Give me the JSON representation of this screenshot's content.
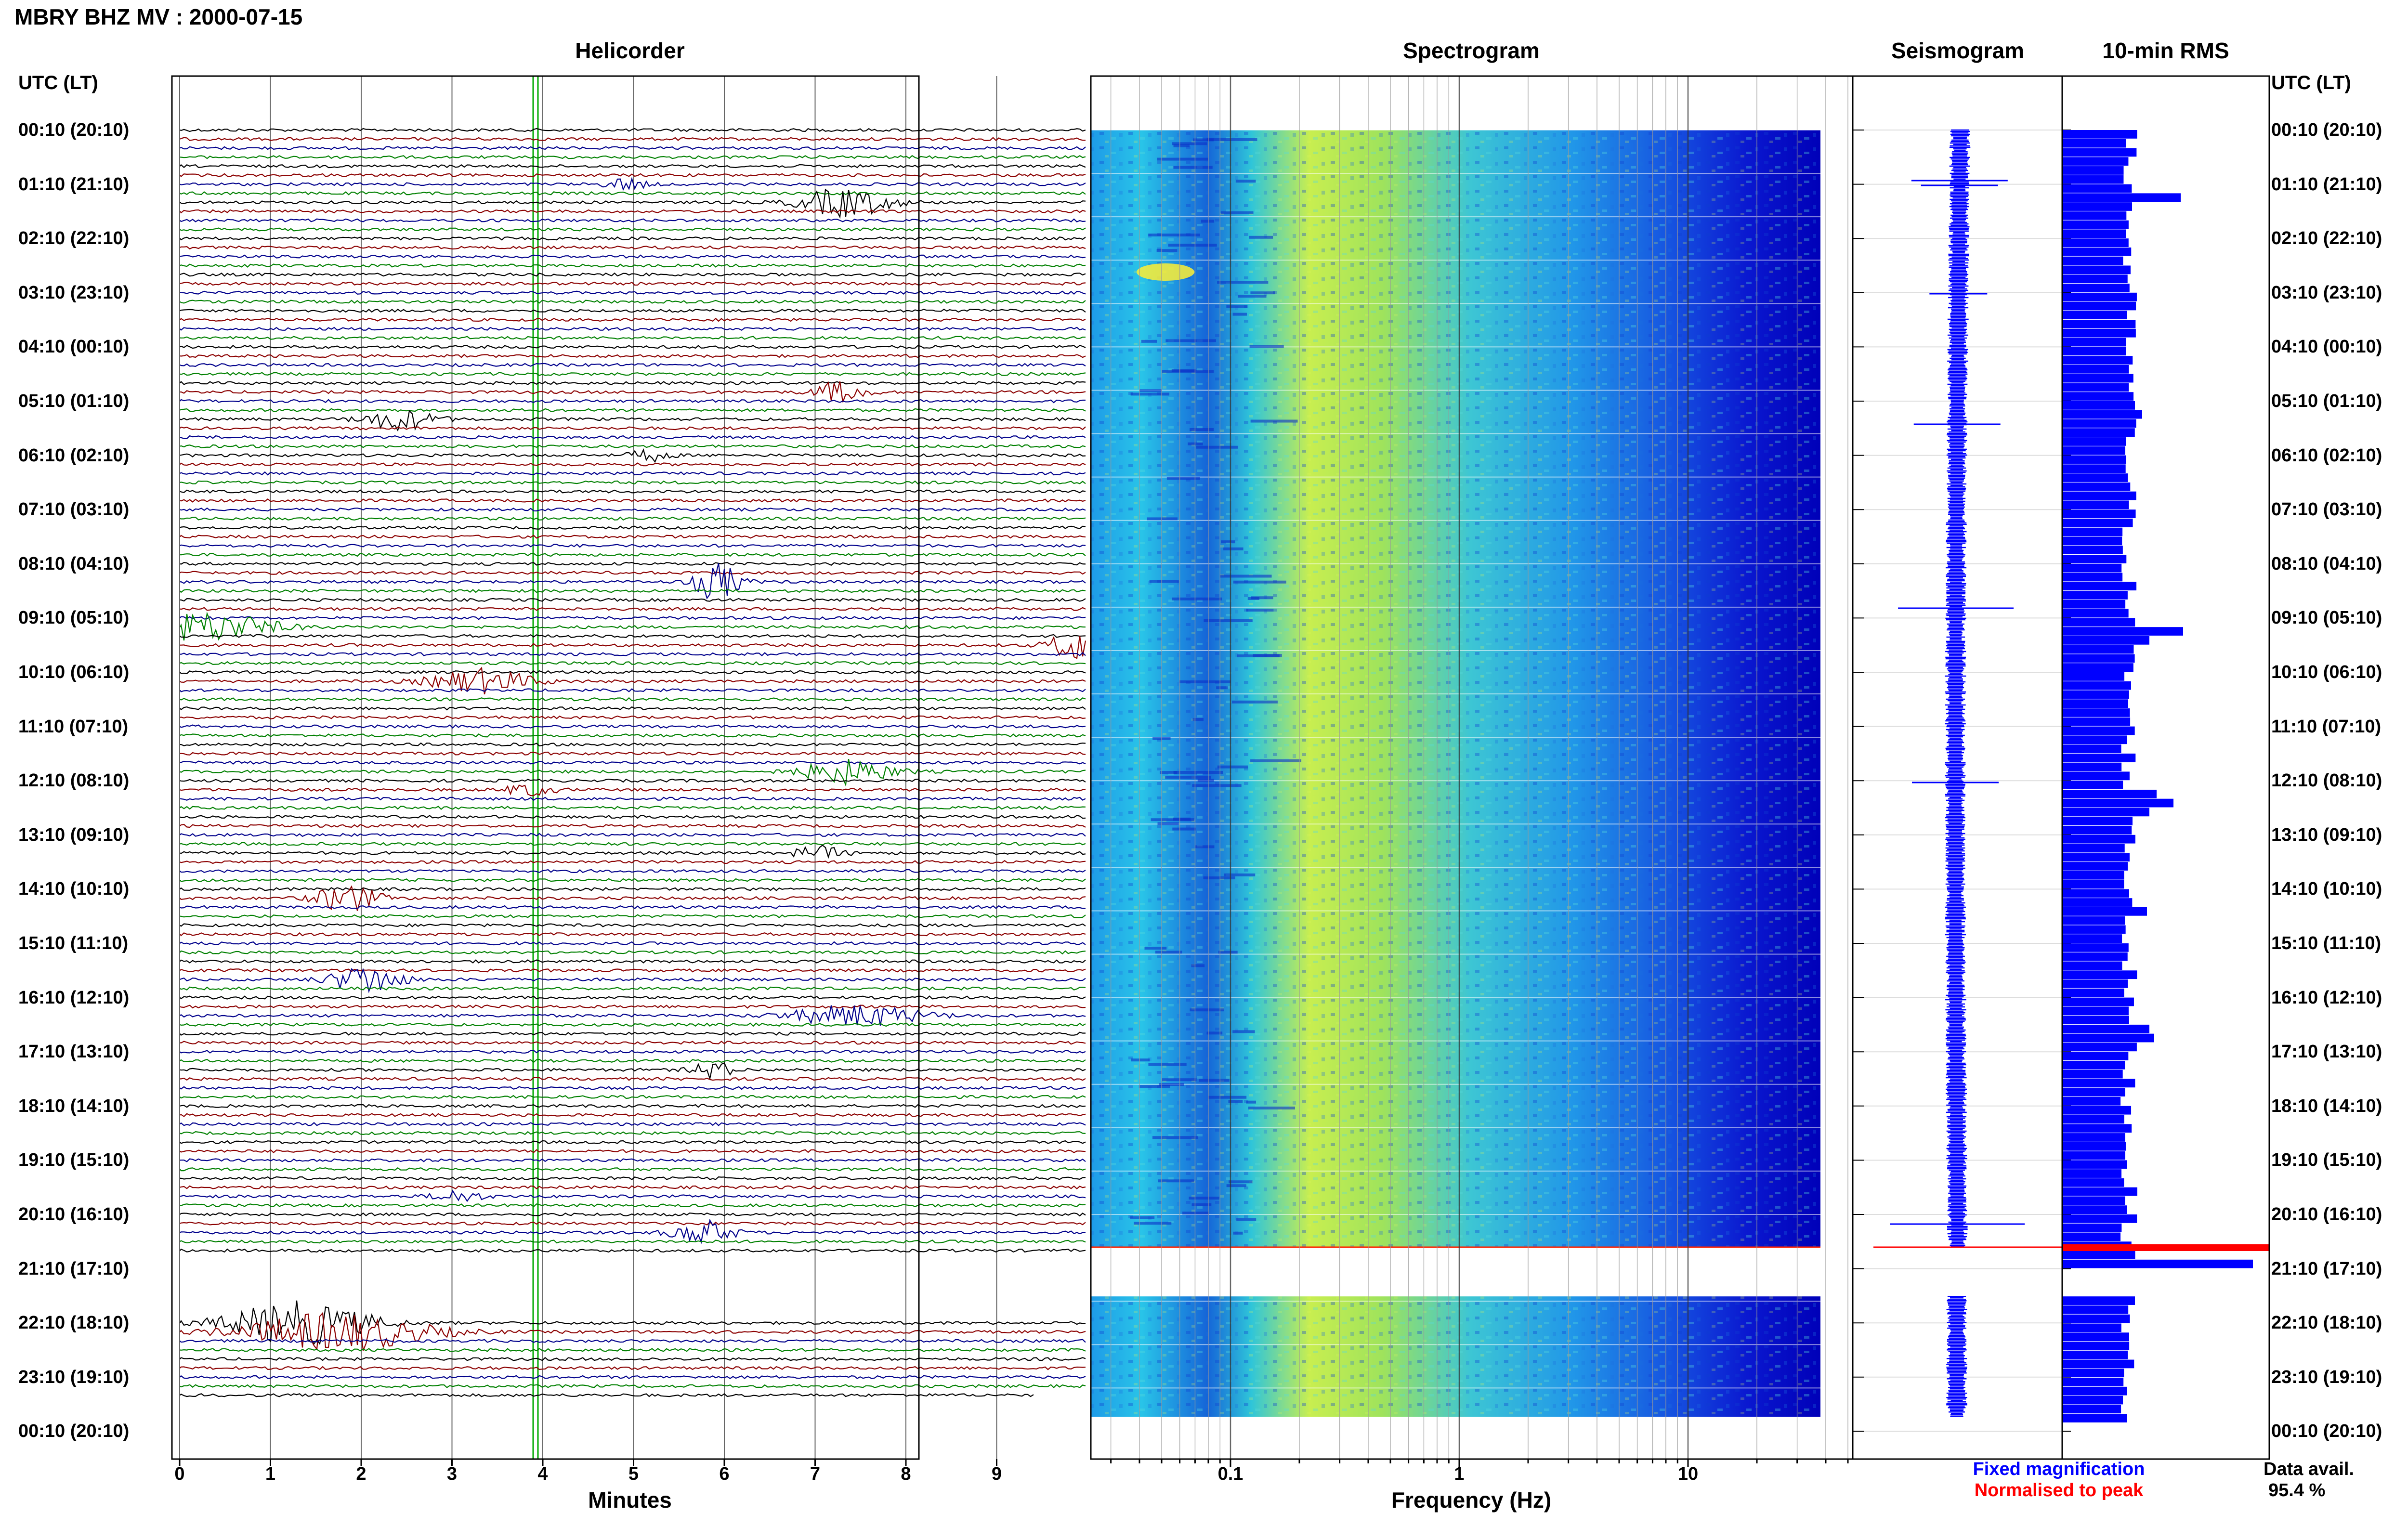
{
  "header": {
    "station_title": "MBRY BHZ MV : 2000-07-15"
  },
  "panels": {
    "helicorder": "Helicorder",
    "spectrogram": "Spectrogram",
    "seismogram": "Seismogram",
    "rms": "10-min RMS"
  },
  "axes": {
    "utc_header_left": "UTC (LT)",
    "utc_header_right": "UTC (LT)",
    "hour_labels": [
      "00:10 (20:10)",
      "01:10 (21:10)",
      "02:10 (22:10)",
      "03:10 (23:10)",
      "04:10 (00:10)",
      "05:10 (01:10)",
      "06:10 (02:10)",
      "07:10 (03:10)",
      "08:10 (04:10)",
      "09:10 (05:10)",
      "10:10 (06:10)",
      "11:10 (07:10)",
      "12:10 (08:10)",
      "13:10 (09:10)",
      "14:10 (10:10)",
      "15:10 (11:10)",
      "16:10 (12:10)",
      "17:10 (13:10)",
      "18:10 (14:10)",
      "19:10 (15:10)",
      "20:10 (16:10)",
      "21:10 (17:10)",
      "22:10 (18:10)",
      "23:10 (19:10)",
      "00:10 (20:10)"
    ],
    "minutes_ticks": [
      "0",
      "1",
      "2",
      "3",
      "4",
      "5",
      "6",
      "7",
      "8",
      "9"
    ],
    "minutes_title": "Minutes",
    "frequency_ticks": [
      "0.1",
      "1",
      "10"
    ],
    "frequency_title": "Frequency (Hz)"
  },
  "legend": {
    "fixed": "Fixed magnification",
    "normalised": "Normalised to peak",
    "fixed_color": "#0000ff",
    "normalised_color": "#ff0000"
  },
  "availability": {
    "label": "Data avail.",
    "value": "95.4 %"
  },
  "colors": {
    "trace_colors": [
      "#000000",
      "#8b0000",
      "#00008b",
      "#008000"
    ],
    "rms_bar": "#0000ff",
    "marker_line": "#00aa00"
  },
  "data_gap": "21:10 (17:10)"
}
